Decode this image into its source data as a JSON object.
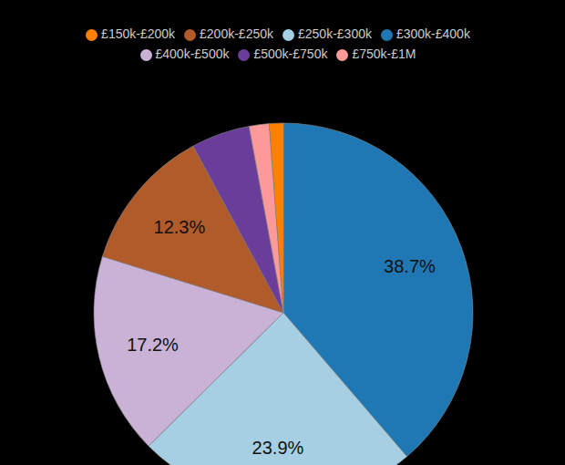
{
  "chart_data": {
    "type": "pie",
    "categories": [
      "£300k-£400k",
      "£250k-£300k",
      "£400k-£500k",
      "£200k-£250k",
      "£500k-£750k",
      "£750k-£1M",
      "£150k-£200k"
    ],
    "values": [
      38.7,
      23.9,
      17.2,
      12.3,
      5.0,
      1.7,
      1.2
    ],
    "value_labels": [
      "38.7%",
      "23.9%",
      "17.2%",
      "12.3%",
      null,
      null,
      null
    ],
    "data_labels": true,
    "colors": [
      "#1f78b4",
      "#a6cfe3",
      "#cab2d6",
      "#b15a2a",
      "#6a3d9a",
      "#fb9a99",
      "#ff7f00"
    ],
    "legend": "top"
  }
}
